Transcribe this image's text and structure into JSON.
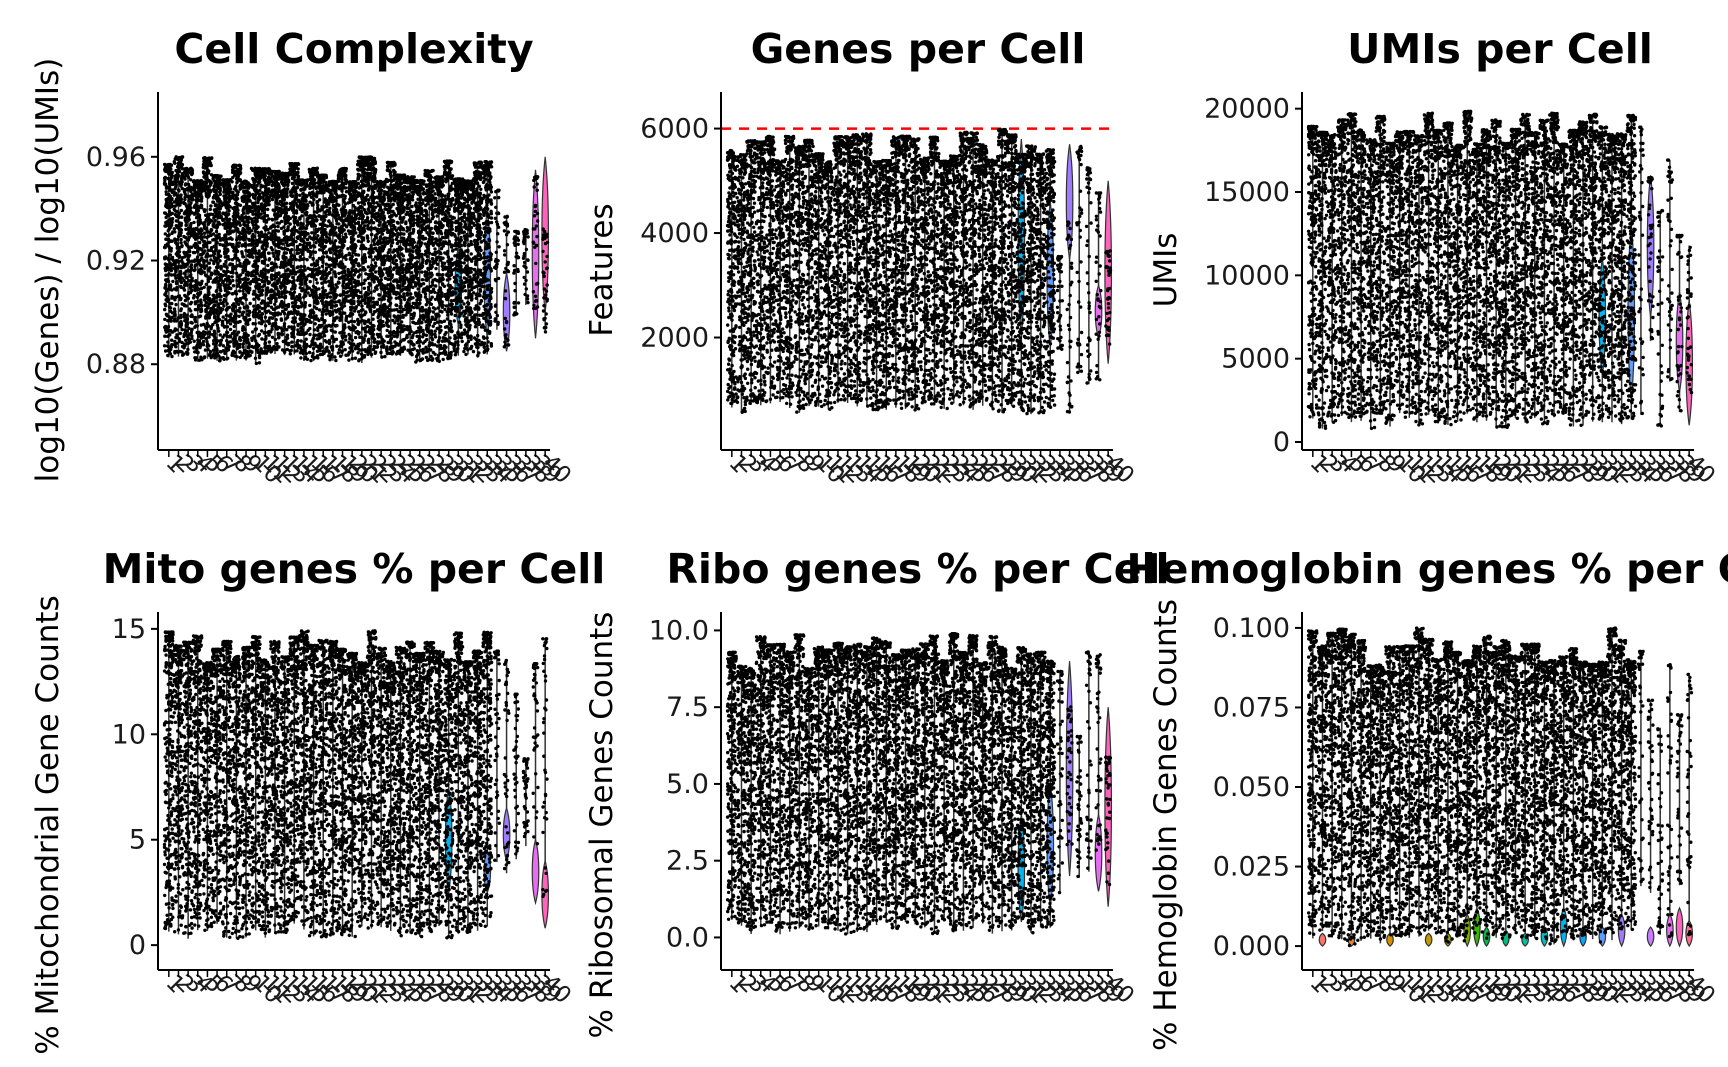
{
  "chart_data": [
    {
      "type": "violin",
      "title": "Cell Complexity",
      "ylabel": "log10(Genes) / log10(UMIs)",
      "ylim": [
        0.85,
        0.985
      ],
      "yticks": [
        0.88,
        0.92,
        0.96
      ],
      "ytick_labels": [
        "0.88",
        "0.92",
        "0.96"
      ],
      "threshold": null,
      "samples": 40,
      "box_low": 0.88,
      "box_high": 0.96,
      "box_min": 0.855,
      "box_max": 0.978,
      "fills": [
        {
          "index": 30,
          "color": "#00B4F0",
          "low": 0.895,
          "high": 0.925
        },
        {
          "index": 33,
          "color": "#619CFF",
          "low": 0.89,
          "high": 0.94
        },
        {
          "index": 35,
          "color": "#9F7CFF",
          "low": 0.885,
          "high": 0.915
        },
        {
          "index": 38,
          "color": "#E76BF3",
          "low": 0.89,
          "high": 0.955
        },
        {
          "index": 39,
          "color": "#FF62BC",
          "low": 0.9,
          "high": 0.96
        }
      ],
      "sparse_from": 34
    },
    {
      "type": "violin",
      "title": "Genes per Cell",
      "ylabel": "Features",
      "ylim": [
        0,
        6700
      ],
      "yticks": [
        2000,
        4000,
        6000
      ],
      "ytick_labels": [
        "2000",
        "4000",
        "6000"
      ],
      "threshold": {
        "value": 6000,
        "color": "#FF0000",
        "style": "dashed"
      },
      "samples": 40,
      "box_low": 500,
      "box_high": 6000,
      "box_min": 500,
      "box_max": 6300,
      "fills": [
        {
          "index": 30,
          "color": "#00B4F0",
          "low": 2000,
          "high": 5800
        },
        {
          "index": 33,
          "color": "#619CFF",
          "low": 1800,
          "high": 4600
        },
        {
          "index": 35,
          "color": "#9F7CFF",
          "low": 3500,
          "high": 5700
        },
        {
          "index": 38,
          "color": "#E76BF3",
          "low": 2000,
          "high": 3000
        },
        {
          "index": 39,
          "color": "#FF62BC",
          "low": 1500,
          "high": 5000
        }
      ],
      "sparse_from": 34
    },
    {
      "type": "violin",
      "title": "UMIs per Cell",
      "ylabel": "UMIs",
      "ylim": [
        0,
        21000
      ],
      "yticks": [
        0,
        5000,
        10000,
        15000,
        20000
      ],
      "ytick_labels": [
        "0",
        "5000",
        "10000",
        "15000",
        "20000"
      ],
      "threshold": null,
      "samples": 40,
      "box_low": 800,
      "box_high": 20000,
      "box_min": 800,
      "box_max": 20000,
      "fills": [
        {
          "index": 30,
          "color": "#00B4F0",
          "low": 4000,
          "high": 11000
        },
        {
          "index": 33,
          "color": "#619CFF",
          "low": 2500,
          "high": 13000
        },
        {
          "index": 35,
          "color": "#9F7CFF",
          "low": 7500,
          "high": 16000
        },
        {
          "index": 38,
          "color": "#E76BF3",
          "low": 3000,
          "high": 9000
        },
        {
          "index": 39,
          "color": "#FF62BC",
          "low": 1000,
          "high": 8500
        }
      ],
      "sparse_from": 34
    },
    {
      "type": "violin",
      "title": "Mito genes % per Cell",
      "ylabel": "% Mitochondrial Gene Counts",
      "ylim": [
        -0.8,
        15.8
      ],
      "yticks": [
        0,
        5,
        10,
        15
      ],
      "ytick_labels": [
        "0",
        "5",
        "10",
        "15"
      ],
      "threshold": null,
      "samples": 40,
      "box_low": 0.3,
      "box_high": 15,
      "box_min": 0.2,
      "box_max": 15,
      "fills": [
        {
          "index": 29,
          "color": "#00B4F0",
          "low": 2.5,
          "high": 7.5
        },
        {
          "index": 33,
          "color": "#619CFF",
          "low": 2.5,
          "high": 4.5
        },
        {
          "index": 35,
          "color": "#9F7CFF",
          "low": 4,
          "high": 6.5
        },
        {
          "index": 38,
          "color": "#E76BF3",
          "low": 2,
          "high": 5
        },
        {
          "index": 39,
          "color": "#FF62BC",
          "low": 0.8,
          "high": 4
        }
      ],
      "sparse_from": 34
    },
    {
      "type": "violin",
      "title": "Ribo genes % per Cell",
      "ylabel": "% Ribosomal Genes Counts",
      "ylim": [
        -0.8,
        10.6
      ],
      "yticks": [
        0,
        2.5,
        5,
        7.5,
        10
      ],
      "ytick_labels": [
        "0.0",
        "2.5",
        "5.0",
        "7.5",
        "10.0"
      ],
      "threshold": null,
      "samples": 40,
      "box_low": 0.1,
      "box_high": 9.9,
      "box_min": 0,
      "box_max": 10,
      "fills": [
        {
          "index": 30,
          "color": "#00B4F0",
          "low": 0.5,
          "high": 4
        },
        {
          "index": 33,
          "color": "#619CFF",
          "low": 1,
          "high": 5
        },
        {
          "index": 35,
          "color": "#9F7CFF",
          "low": 2,
          "high": 9
        },
        {
          "index": 38,
          "color": "#E76BF3",
          "low": 1.5,
          "high": 4
        },
        {
          "index": 39,
          "color": "#FF62BC",
          "low": 1,
          "high": 7.5
        }
      ],
      "sparse_from": 34
    },
    {
      "type": "violin",
      "title": "Hemoglobin genes % per Cell",
      "ylabel": "% Hemoglobin Genes Counts",
      "ylim": [
        -0.005,
        0.105
      ],
      "yticks": [
        0,
        0.025,
        0.05,
        0.075,
        0.1
      ],
      "ytick_labels": [
        "0.000",
        "0.025",
        "0.050",
        "0.075",
        "0.100"
      ],
      "threshold": null,
      "samples": 40,
      "box_low": 0,
      "box_high": 0.1,
      "box_min": 0,
      "box_max": 0.1,
      "fills": [
        {
          "index": 1,
          "color": "#F8766D",
          "low": 0,
          "high": 0.004
        },
        {
          "index": 4,
          "color": "#EA8331",
          "low": 0,
          "high": 0.004
        },
        {
          "index": 8,
          "color": "#D89000",
          "low": 0,
          "high": 0.004
        },
        {
          "index": 12,
          "color": "#C09B00",
          "low": 0,
          "high": 0.004
        },
        {
          "index": 14,
          "color": "#A3A500",
          "low": 0,
          "high": 0.004
        },
        {
          "index": 16,
          "color": "#7CAE00",
          "low": 0,
          "high": 0.01
        },
        {
          "index": 17,
          "color": "#39B600",
          "low": 0,
          "high": 0.012
        },
        {
          "index": 18,
          "color": "#00BB4E",
          "low": 0,
          "high": 0.006
        },
        {
          "index": 20,
          "color": "#00BF7D",
          "low": 0,
          "high": 0.005
        },
        {
          "index": 22,
          "color": "#00C1A3",
          "low": 0,
          "high": 0.004
        },
        {
          "index": 24,
          "color": "#00BFC4",
          "low": 0,
          "high": 0.006
        },
        {
          "index": 26,
          "color": "#00B4F0",
          "low": 0,
          "high": 0.012
        },
        {
          "index": 28,
          "color": "#00A9FF",
          "low": 0,
          "high": 0.006
        },
        {
          "index": 30,
          "color": "#619CFF",
          "low": 0,
          "high": 0.006
        },
        {
          "index": 32,
          "color": "#9F7CFF",
          "low": 0,
          "high": 0.01
        },
        {
          "index": 35,
          "color": "#C77CFF",
          "low": 0,
          "high": 0.006
        },
        {
          "index": 37,
          "color": "#E76BF3",
          "low": 0,
          "high": 0.01
        },
        {
          "index": 38,
          "color": "#FF62BC",
          "low": 0,
          "high": 0.012
        },
        {
          "index": 39,
          "color": "#FF6C91",
          "low": 0,
          "high": 0.008
        }
      ],
      "sparse_from": 34
    }
  ]
}
